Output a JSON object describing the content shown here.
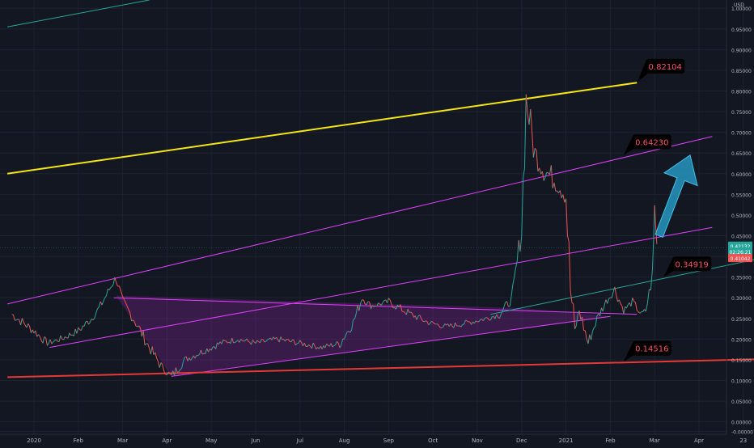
{
  "chart_data": {
    "type": "line",
    "currency": "USD",
    "ylim": [
      -0.03,
      1.02
    ],
    "y_ticks": [
      "1.00000",
      "0.95000",
      "0.90000",
      "0.85000",
      "0.80000",
      "0.75000",
      "0.70000",
      "0.65000",
      "0.60000",
      "0.55000",
      "0.50000",
      "0.45000",
      "0.40000",
      "0.35000",
      "0.30000",
      "0.25000",
      "0.20000",
      "0.15000",
      "0.10000",
      "0.05000",
      "0.00000",
      "-0.00000"
    ],
    "x_ticks": [
      "2020",
      "Feb",
      "Mar",
      "Apr",
      "May",
      "Jun",
      "Jul",
      "Aug",
      "Sep",
      "Oct",
      "Nov",
      "Dec",
      "2021",
      "Feb",
      "Mar",
      "Apr",
      "23"
    ],
    "price_path": [
      [
        -0.5,
        0.26
      ],
      [
        0.0,
        0.22
      ],
      [
        0.3,
        0.19
      ],
      [
        0.6,
        0.2
      ],
      [
        1.0,
        0.22
      ],
      [
        1.3,
        0.25
      ],
      [
        1.5,
        0.28
      ],
      [
        1.7,
        0.32
      ],
      [
        1.85,
        0.35
      ],
      [
        2.0,
        0.29
      ],
      [
        2.3,
        0.24
      ],
      [
        2.6,
        0.18
      ],
      [
        2.9,
        0.13
      ],
      [
        3.1,
        0.11
      ],
      [
        3.4,
        0.15
      ],
      [
        3.8,
        0.17
      ],
      [
        4.2,
        0.19
      ],
      [
        4.6,
        0.2
      ],
      [
        5.0,
        0.19
      ],
      [
        5.5,
        0.2
      ],
      [
        6.0,
        0.19
      ],
      [
        6.5,
        0.18
      ],
      [
        6.9,
        0.19
      ],
      [
        7.2,
        0.24
      ],
      [
        7.4,
        0.3
      ],
      [
        7.6,
        0.28
      ],
      [
        8.0,
        0.29
      ],
      [
        8.5,
        0.26
      ],
      [
        8.9,
        0.24
      ],
      [
        9.3,
        0.23
      ],
      [
        9.8,
        0.24
      ],
      [
        10.2,
        0.25
      ],
      [
        10.5,
        0.26
      ],
      [
        10.8,
        0.3
      ],
      [
        11.0,
        0.47
      ],
      [
        11.1,
        0.78
      ],
      [
        11.3,
        0.65
      ],
      [
        11.5,
        0.61
      ],
      [
        11.8,
        0.58
      ],
      [
        12.0,
        0.55
      ],
      [
        12.1,
        0.32
      ],
      [
        12.2,
        0.22
      ],
      [
        12.3,
        0.27
      ],
      [
        12.5,
        0.19
      ],
      [
        12.7,
        0.25
      ],
      [
        12.9,
        0.29
      ],
      [
        13.1,
        0.32
      ],
      [
        13.3,
        0.27
      ],
      [
        13.5,
        0.29
      ],
      [
        13.7,
        0.26
      ],
      [
        13.8,
        0.27
      ],
      [
        13.95,
        0.35
      ],
      [
        14.0,
        0.52
      ],
      [
        14.05,
        0.43
      ]
    ],
    "series": [
      {
        "name": "",
        "color": "#f5e613",
        "values": [
          [
            -0.6,
            0.6
          ],
          [
            13.6,
            0.82
          ]
        ]
      },
      {
        "name": "",
        "color": "#e040fb",
        "values": [
          [
            -0.6,
            0.285
          ],
          [
            15.3,
            0.69
          ]
        ]
      },
      {
        "name": "",
        "color": "#e040fb",
        "values": [
          [
            0.35,
            0.18
          ],
          [
            15.3,
            0.47
          ]
        ]
      },
      {
        "name": "",
        "color": "#e040fb",
        "values": [
          [
            1.8,
            0.3
          ],
          [
            13.6,
            0.26
          ]
        ]
      },
      {
        "name": "",
        "color": "#e040fb",
        "values": [
          [
            3.1,
            0.11
          ],
          [
            13.0,
            0.255
          ]
        ]
      },
      {
        "name": "",
        "color": "#26a69a",
        "values": [
          [
            10.3,
            0.26
          ],
          [
            16.6,
            0.4
          ]
        ]
      },
      {
        "name": "",
        "color": "#e53935",
        "values": [
          [
            -0.6,
            0.108
          ],
          [
            16.6,
            0.152
          ]
        ]
      },
      {
        "name": "",
        "color": "#26a69a",
        "values": [
          [
            -0.6,
            0.955
          ],
          [
            2.6,
            1.02
          ]
        ]
      }
    ],
    "area_fill": [
      [
        1.85,
        0.305
      ],
      [
        3.1,
        0.11
      ],
      [
        13.0,
        0.255
      ],
      [
        11.0,
        0.275
      ]
    ],
    "arrow": {
      "from": [
        14.1,
        0.45
      ],
      "to": [
        14.8,
        0.645
      ],
      "color": "#2aa7d6"
    },
    "annotations": [
      {
        "text": "0.82104",
        "x": 13.6,
        "y": 0.82,
        "tag_dx": 0.2,
        "tag_dy": 0.04
      },
      {
        "text": "0.64230",
        "x": 13.3,
        "y": 0.645,
        "tag_dx": 0.2,
        "tag_dy": 0.032
      },
      {
        "text": "0.34919",
        "x": 14.2,
        "y": 0.35,
        "tag_dx": 0.2,
        "tag_dy": 0.032
      },
      {
        "text": "0.14516",
        "x": 13.3,
        "y": 0.146,
        "tag_dx": 0.2,
        "tag_dy": 0.032
      }
    ],
    "price_labels": [
      {
        "text": "0.42132",
        "y": 0.426,
        "color": "#26a69a"
      },
      {
        "text": "02:26:21",
        "y": 0.412,
        "color": "#26a69a"
      },
      {
        "text": "0.41042",
        "y": 0.396,
        "color": "#ef5350"
      }
    ],
    "grid": true,
    "last_price": 0.421
  }
}
